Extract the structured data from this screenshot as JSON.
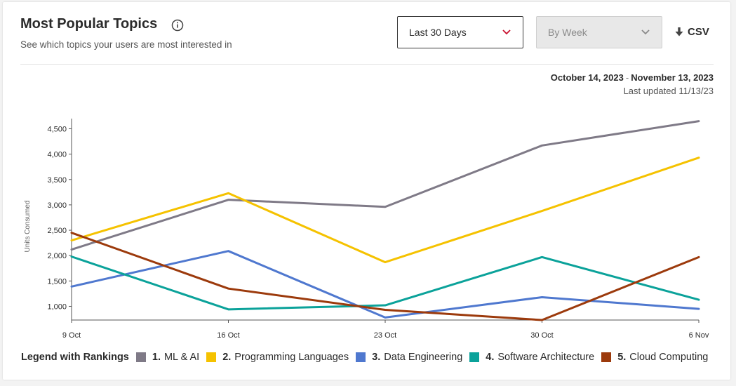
{
  "header": {
    "title": "Most Popular Topics",
    "subtitle": "See which topics your users are most interested in"
  },
  "controls": {
    "range_select": {
      "value": "Last 30 Days"
    },
    "period_select": {
      "value": "By Week",
      "disabled": true
    },
    "csv_label": "CSV"
  },
  "meta": {
    "date_start": "October 14, 2023",
    "date_separator": "-",
    "date_end": "November 13, 2023",
    "last_updated": "Last updated 11/13/23"
  },
  "legend": {
    "title": "Legend with Rankings"
  },
  "icons": {
    "info": "info-circle-icon",
    "chevron": "chevron-down-icon",
    "download": "download-arrow-icon"
  },
  "chart_data": {
    "type": "line",
    "title": "",
    "xlabel": "",
    "ylabel": "Units Consumed",
    "x": [
      "9 Oct",
      "16 Oct",
      "23 Oct",
      "30 Oct",
      "6 Nov"
    ],
    "yticks": [
      1000,
      1500,
      2000,
      2500,
      3000,
      3500,
      4000,
      4500
    ],
    "ytick_labels": [
      "1,000",
      "1,500",
      "2,000",
      "2,500",
      "3,000",
      "3,500",
      "4,000",
      "4,500"
    ],
    "ylim": [
      730,
      4700
    ],
    "grid": false,
    "legend_position": "bottom-left",
    "series": [
      {
        "rank": "1.",
        "name": "ML & AI",
        "color": "#7f7a87",
        "values": [
          2120,
          3100,
          2960,
          4170,
          4650
        ]
      },
      {
        "rank": "2.",
        "name": "Programming Languages",
        "color": "#f5c200",
        "values": [
          2300,
          3230,
          1870,
          2880,
          3930
        ]
      },
      {
        "rank": "3.",
        "name": "Data Engineering",
        "color": "#4f78cf",
        "values": [
          1390,
          2090,
          780,
          1180,
          950
        ]
      },
      {
        "rank": "4.",
        "name": "Software Architecture",
        "color": "#0ba29a",
        "values": [
          1980,
          940,
          1020,
          1970,
          1130
        ]
      },
      {
        "rank": "5.",
        "name": "Cloud Computing",
        "color": "#9c3a0c",
        "values": [
          2450,
          1350,
          930,
          730,
          1970
        ]
      }
    ]
  }
}
